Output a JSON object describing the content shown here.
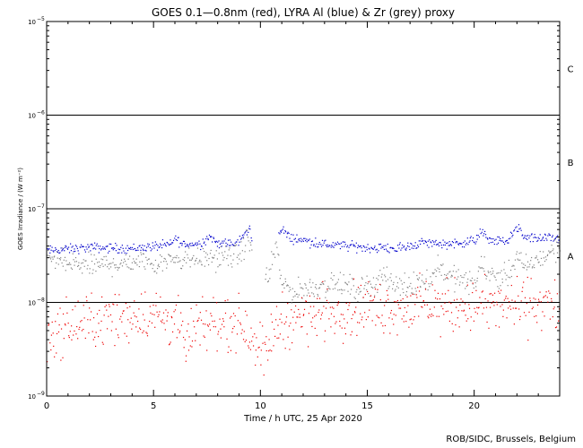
{
  "chart_data": {
    "type": "scatter",
    "title": "GOES 0.1—0.8nm (red), LYRA Al (blue) & Zr (grey) proxy",
    "xlabel": "Time / h UTC, 25 Apr 2020",
    "ylabel": "GOES Irradiance / (W m⁻²)",
    "xlim": [
      0,
      24
    ],
    "ylim": [
      1e-09,
      1e-05
    ],
    "yscale": "log",
    "x_ticks": [
      0,
      5,
      10,
      15,
      20
    ],
    "y_tick_exponents": [
      "−5",
      "−6",
      "−7",
      "−8",
      "−9"
    ],
    "flare_levels": [
      {
        "label": "C",
        "y": 1e-06
      },
      {
        "label": "B",
        "y": 1e-07
      },
      {
        "label": "A",
        "y": 1e-08
      }
    ],
    "reference_lines": [
      1e-06,
      1e-07,
      1e-08
    ],
    "series": [
      {
        "color": "#0000cc",
        "profile": [
          [
            0,
            3.6e-08
          ],
          [
            2,
            3.9e-08
          ],
          [
            4,
            3.8e-08
          ],
          [
            5.8,
            4.2e-08
          ],
          [
            6,
            5e-08
          ],
          [
            6.3,
            4.2e-08
          ],
          [
            7.2,
            4.3e-08
          ],
          [
            7.6,
            5.2e-08
          ],
          [
            7.9,
            4.4e-08
          ],
          [
            8.8,
            4.2e-08
          ],
          [
            9.3,
            5.5e-08
          ],
          [
            9.45,
            6.5e-08
          ],
          [
            9.6,
            4.3e-08
          ],
          [
            10.0,
            4e-08
          ],
          [
            10.85,
            5.2e-08
          ],
          [
            11.0,
            6.2e-08
          ],
          [
            11.3,
            5e-08
          ],
          [
            13,
            4.2e-08
          ],
          [
            15,
            3.9e-08
          ],
          [
            16.5,
            3.8e-08
          ],
          [
            17.5,
            4.4e-08
          ],
          [
            18.5,
            4.3e-08
          ],
          [
            19,
            4.3e-08
          ],
          [
            20,
            4.6e-08
          ],
          [
            20.3,
            5.8e-08
          ],
          [
            20.7,
            4.7e-08
          ],
          [
            21.5,
            4.5e-08
          ],
          [
            22.0,
            6.5e-08
          ],
          [
            22.3,
            5e-08
          ],
          [
            24,
            4.8e-08
          ]
        ],
        "gaps": [
          [
            9.6,
            10.8
          ]
        ]
      },
      {
        "color": "#808080",
        "profile": [
          [
            0,
            3e-08
          ],
          [
            1,
            2.6e-08
          ],
          [
            2,
            2.5e-08
          ],
          [
            3,
            2.6e-08
          ],
          [
            4,
            2.8e-08
          ],
          [
            5,
            2.7e-08
          ],
          [
            6,
            3e-08
          ],
          [
            7,
            3e-08
          ],
          [
            8,
            3e-08
          ],
          [
            9,
            3.2e-08
          ],
          [
            9.4,
            5e-08
          ],
          [
            9.6,
            3e-08
          ],
          [
            10,
            2.6e-08
          ],
          [
            10.3,
            1.6e-08
          ],
          [
            10.7,
            4e-08
          ],
          [
            11,
            1.6e-08
          ],
          [
            11.5,
            1.3e-08
          ],
          [
            12.5,
            1.5e-08
          ],
          [
            13.5,
            1.6e-08
          ],
          [
            14.5,
            1.4e-08
          ],
          [
            15.3,
            1.6e-08
          ],
          [
            15.7,
            2e-08
          ],
          [
            16.2,
            1.5e-08
          ],
          [
            17,
            1.6e-08
          ],
          [
            18.0,
            1.8e-08
          ],
          [
            18.3,
            2.6e-08
          ],
          [
            18.7,
            2e-08
          ],
          [
            19.5,
            1.7e-08
          ],
          [
            20,
            1.6e-08
          ],
          [
            20.3,
            2.5e-08
          ],
          [
            20.8,
            2e-08
          ],
          [
            21.5,
            1.9e-08
          ],
          [
            22.0,
            3e-08
          ],
          [
            22.3,
            2.4e-08
          ],
          [
            23,
            2.9e-08
          ],
          [
            24,
            4e-08
          ]
        ],
        "gaps": [
          [
            9.6,
            10.2
          ]
        ]
      },
      {
        "color": "#ee0000",
        "profile": [
          [
            0,
            4.5e-09
          ],
          [
            1,
            5.5e-09
          ],
          [
            2,
            6.5e-09
          ],
          [
            3,
            6.5e-09
          ],
          [
            4,
            7.5e-09
          ],
          [
            5,
            7.5e-09
          ],
          [
            6,
            6.5e-09
          ],
          [
            6.5,
            3.5e-09
          ],
          [
            7,
            5e-09
          ],
          [
            8,
            6.5e-09
          ],
          [
            9,
            6e-09
          ],
          [
            9.5,
            5e-09
          ],
          [
            10,
            3.5e-09
          ],
          [
            10.2,
            2.2e-09
          ],
          [
            10.5,
            5e-09
          ],
          [
            11,
            6.5e-09
          ],
          [
            12,
            7e-09
          ],
          [
            13,
            8e-09
          ],
          [
            14,
            8.5e-09
          ],
          [
            15,
            9e-09
          ],
          [
            16,
            9e-09
          ],
          [
            17,
            9e-09
          ],
          [
            18,
            9.5e-09
          ],
          [
            19,
            9e-09
          ],
          [
            20,
            9.5e-09
          ],
          [
            21,
            9e-09
          ],
          [
            22,
            9.5e-09
          ],
          [
            23,
            1e-08
          ],
          [
            24,
            9e-09
          ]
        ],
        "gaps": []
      }
    ]
  },
  "footer": {
    "credit": "ROB/SIDC, Brussels, Belgium"
  }
}
